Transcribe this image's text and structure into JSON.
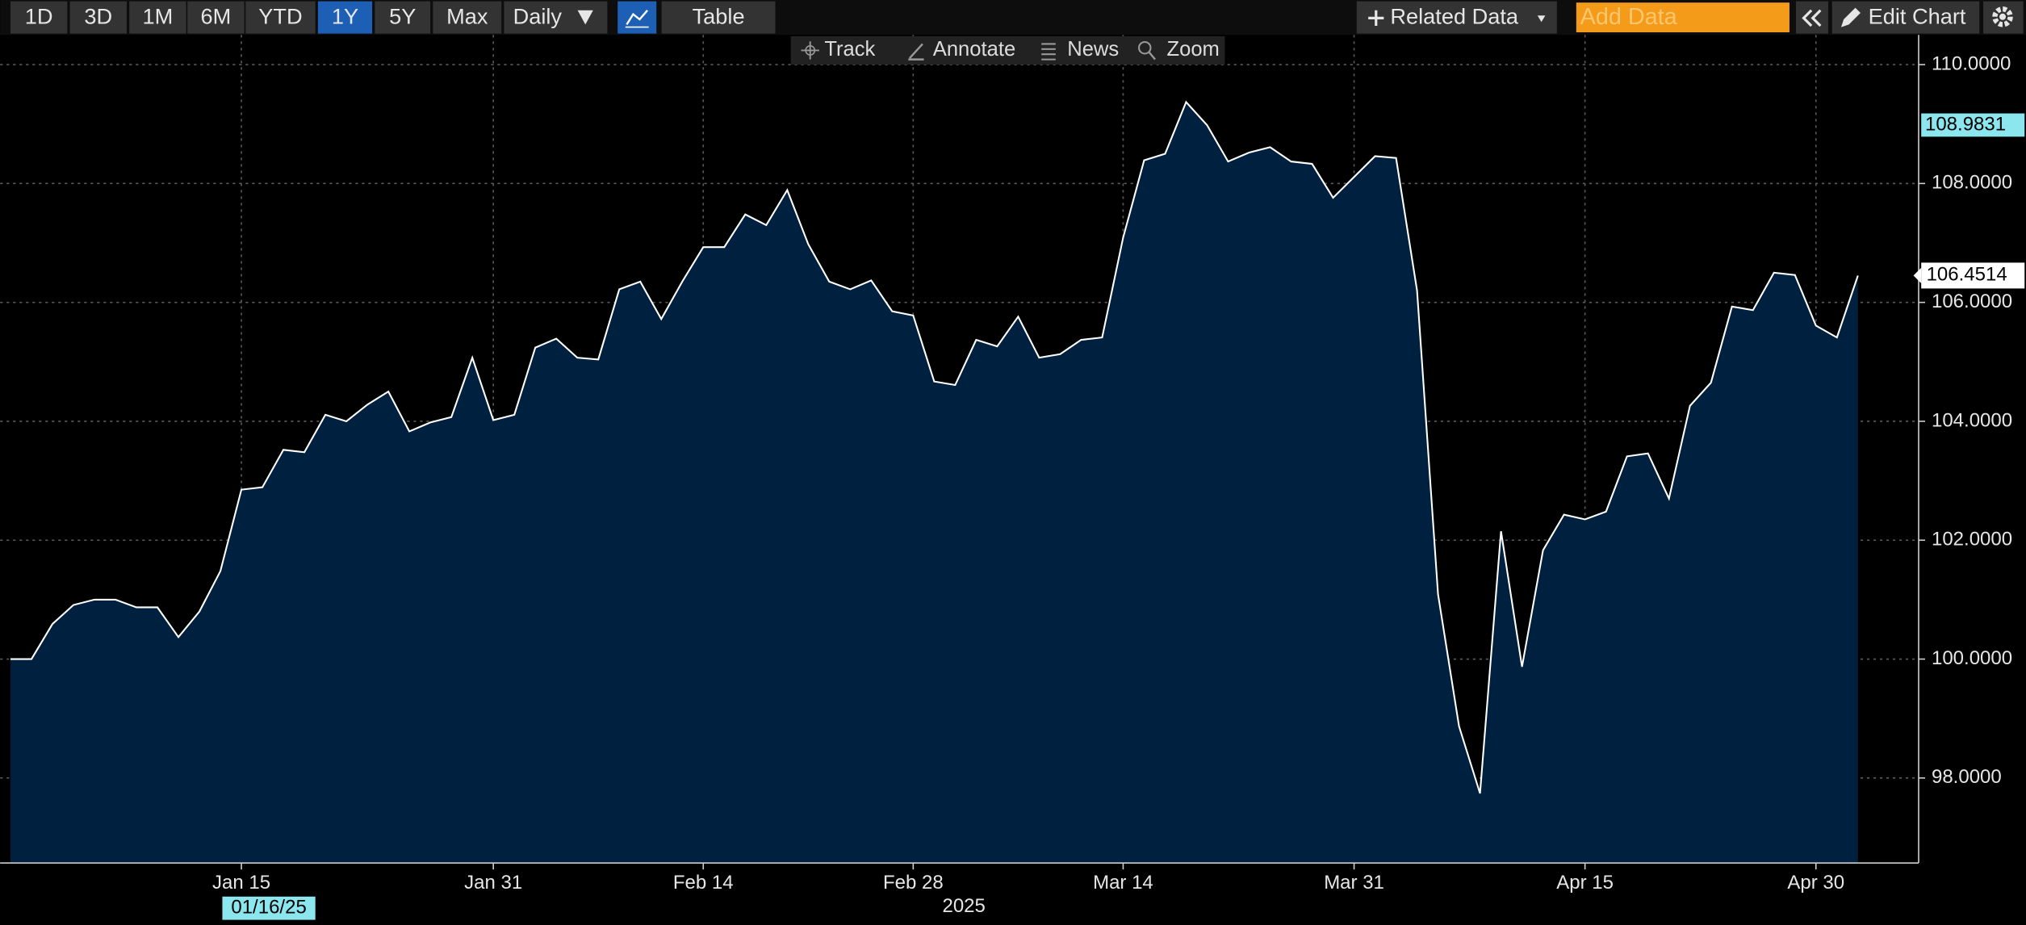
{
  "toolbar": {
    "ranges": [
      "1D",
      "3D",
      "1M",
      "6M",
      "YTD",
      "1Y",
      "5Y",
      "Max"
    ],
    "active_range": "1Y",
    "frequency": "Daily",
    "table": "Table",
    "related_data": "Related Data",
    "add_data_placeholder": "Add Data",
    "edit_chart": "Edit Chart"
  },
  "tools": [
    "Track",
    "Annotate",
    "News",
    "Zoom"
  ],
  "chart_data": {
    "type": "area",
    "categories": [
      null,
      null,
      null,
      null,
      null,
      null,
      null,
      null,
      null,
      null,
      null,
      "Jan 15",
      null,
      null,
      null,
      null,
      null,
      null,
      null,
      null,
      null,
      null,
      null,
      "Jan 31",
      null,
      null,
      null,
      null,
      null,
      null,
      null,
      null,
      null,
      "Feb 14",
      null,
      null,
      null,
      null,
      null,
      null,
      null,
      null,
      null,
      "Feb 28",
      null,
      null,
      null,
      null,
      null,
      null,
      null,
      null,
      null,
      "Mar 14",
      null,
      null,
      null,
      null,
      null,
      null,
      null,
      null,
      null,
      null,
      "Mar 31",
      null,
      null,
      null,
      null,
      null,
      null,
      null,
      null,
      null,
      null,
      "Apr 15",
      null,
      null,
      null,
      null,
      null,
      null,
      null,
      null,
      null,
      null,
      "Apr 30",
      null,
      null
    ],
    "values": [
      100.0,
      100.0,
      100.59,
      100.91,
      101.0,
      101.0,
      100.87,
      100.87,
      100.37,
      100.8,
      101.48,
      102.85,
      102.89,
      103.52,
      103.48,
      104.11,
      104.0,
      104.28,
      104.5,
      103.83,
      103.98,
      104.07,
      105.07,
      104.02,
      104.11,
      105.24,
      105.39,
      105.07,
      105.04,
      106.22,
      106.35,
      105.72,
      106.35,
      106.93,
      106.93,
      107.48,
      107.3,
      107.89,
      106.98,
      106.35,
      106.22,
      106.37,
      105.85,
      105.78,
      104.67,
      104.61,
      105.37,
      105.26,
      105.76,
      105.07,
      105.13,
      105.37,
      105.41,
      107.09,
      108.39,
      108.5,
      109.37,
      108.98,
      108.37,
      108.52,
      108.61,
      108.37,
      108.33,
      107.76,
      108.11,
      108.46,
      108.43,
      106.2,
      101.09,
      98.87,
      97.74,
      102.15,
      99.87,
      101.83,
      102.43,
      102.35,
      102.48,
      103.41,
      103.46,
      102.7,
      104.26,
      104.65,
      105.93,
      105.87,
      106.5,
      106.46,
      105.61,
      105.41,
      106.4514
    ],
    "last_value_label": "106.4514",
    "color": "#ffffff",
    "fill_color": "#00203f",
    "ylim": [
      96.57,
      110.5
    ],
    "yticks": [
      {
        "value": 98,
        "label": "98.0000"
      },
      {
        "value": 100,
        "label": "100.0000"
      },
      {
        "value": 102,
        "label": "102.0000"
      },
      {
        "value": 104,
        "label": "104.0000"
      },
      {
        "value": 106,
        "label": "106.0000"
      },
      {
        "value": 108,
        "label": "108.0000"
      },
      {
        "value": 110,
        "label": "110.0000"
      }
    ],
    "grid": true,
    "x_year_label": "2025",
    "cursor": {
      "x_label": "01/16/25",
      "y": {
        "value": 108.9831,
        "label": "108.9831"
      }
    }
  }
}
